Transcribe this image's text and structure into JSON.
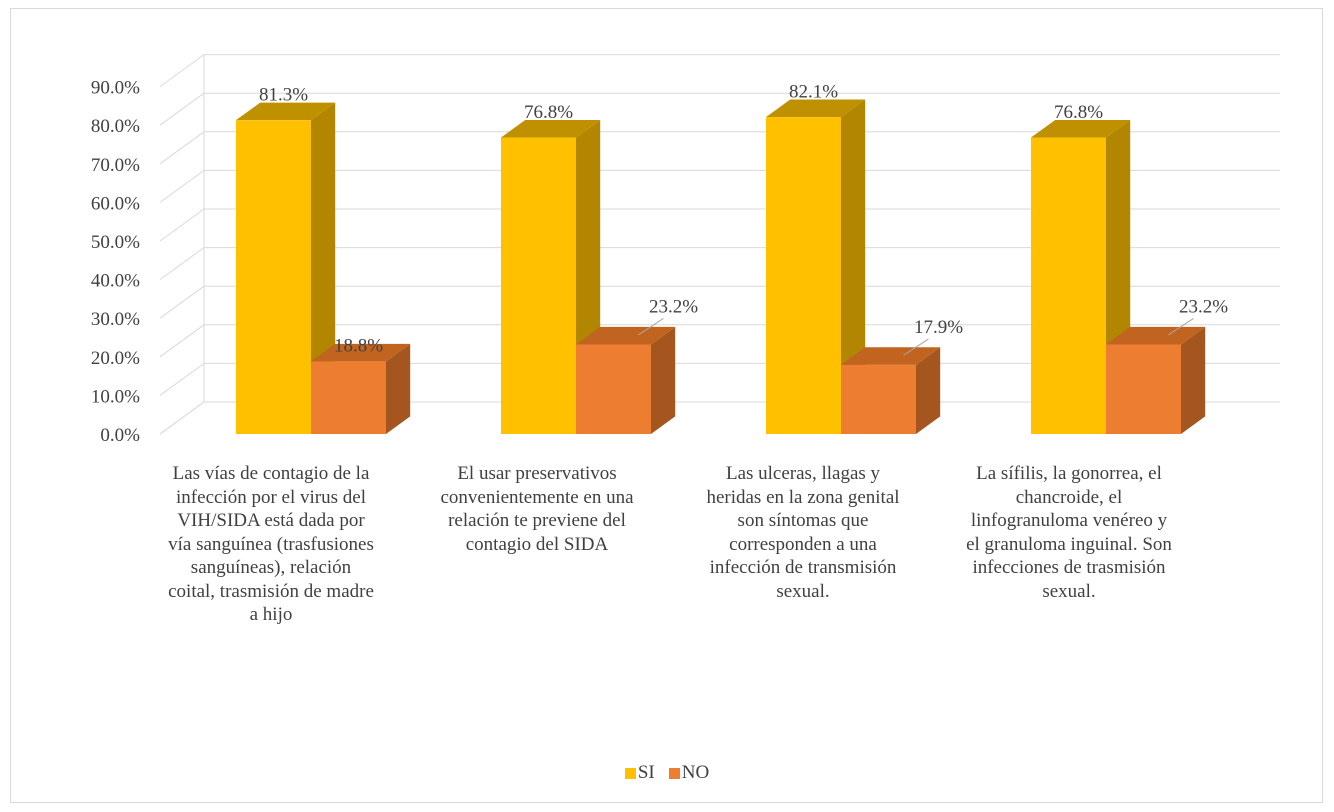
{
  "chart_data": {
    "type": "bar",
    "title": "",
    "xlabel": "",
    "ylabel": "",
    "ylim": [
      0,
      90
    ],
    "yticks": [
      "0.0%",
      "10.0%",
      "20.0%",
      "30.0%",
      "40.0%",
      "50.0%",
      "60.0%",
      "70.0%",
      "80.0%",
      "90.0%"
    ],
    "categories": [
      "Las vías de contagio de la infección por el virus del VIH/SIDA está dada por vía sanguínea (trasfusiones sanguíneas), relación coital, trasmisión de madre a hijo",
      "El usar preservativos convenientemente en una relación te previene del contagio del SIDA",
      "Las ulceras, llagas y heridas en la zona genital son síntomas que corresponden a una infección de transmisión sexual.",
      "La sífilis, la gonorrea, el chancroide, el linfogranuloma venéreo y el granuloma inguinal. Son infecciones de trasmisión sexual."
    ],
    "series": [
      {
        "name": "SI",
        "values": [
          81.3,
          76.8,
          82.1,
          76.8
        ],
        "labels": [
          "81.3%",
          "76.8%",
          "82.1%",
          "76.8%"
        ]
      },
      {
        "name": "NO",
        "values": [
          18.8,
          23.2,
          17.9,
          23.2
        ],
        "labels": [
          "18.8%",
          "23.2%",
          "17.9%",
          "23.2%"
        ]
      }
    ],
    "colors": {
      "SI": {
        "front": "#ffc000",
        "side": "#b28600",
        "top": "#bf9000"
      },
      "NO": {
        "front": "#ed7d31",
        "side": "#a5561f",
        "top": "#c0641f"
      }
    },
    "grid": true,
    "legend": "bottom"
  }
}
